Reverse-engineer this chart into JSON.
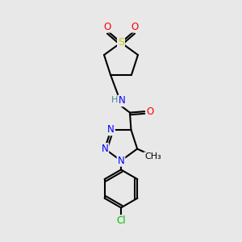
{
  "background_color": "#e8e8e8",
  "bond_color": "#000000",
  "bond_width": 1.5,
  "atom_colors": {
    "N": "#0000ff",
    "O": "#ff0000",
    "S": "#cccc00",
    "Cl": "#00bb00",
    "C": "#000000",
    "H": "#4a8a8a"
  },
  "figsize": [
    3.0,
    3.0
  ],
  "dpi": 100
}
